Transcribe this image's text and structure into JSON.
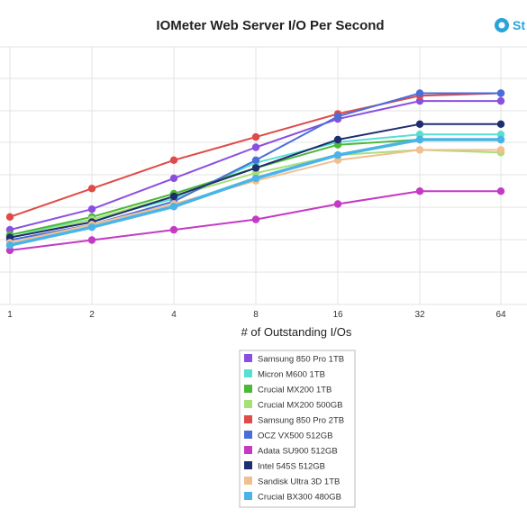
{
  "brand": {
    "logo_text": "St",
    "logo_icon": "brand-logo-icon",
    "accent": "#2aa3d8"
  },
  "chart_data": {
    "type": "line",
    "title": "IOMeter Web Server I/O Per Second",
    "xlabel": "# of Outstanding I/Os",
    "ylabel": "",
    "x_scale": "log2",
    "categories": [
      "1",
      "2",
      "4",
      "8",
      "16",
      "32",
      "64"
    ],
    "ylim": [
      0,
      1
    ],
    "grid": true,
    "legend_position": "bottom-center",
    "series": [
      {
        "name": "Samsung 850 Pro 1TB",
        "color": "#8b4fe0",
        "values": [
          0.29,
          0.37,
          0.49,
          0.61,
          0.72,
          0.79,
          0.79
        ]
      },
      {
        "name": "Micron M600 1TB",
        "color": "#55e0d2",
        "values": [
          0.27,
          0.33,
          0.41,
          0.55,
          0.63,
          0.66,
          0.66
        ]
      },
      {
        "name": "Crucial MX200 1TB",
        "color": "#4cb83a",
        "values": [
          0.27,
          0.34,
          0.43,
          0.53,
          0.62,
          0.64,
          0.64
        ]
      },
      {
        "name": "Crucial MX200 500GB",
        "color": "#a8e078",
        "values": [
          0.26,
          0.33,
          0.42,
          0.51,
          0.58,
          0.6,
          0.59
        ]
      },
      {
        "name": "Samsung 850 Pro 2TB",
        "color": "#e04a48",
        "values": [
          0.34,
          0.45,
          0.56,
          0.65,
          0.74,
          0.81,
          0.82
        ]
      },
      {
        "name": "OCZ VX500 512GB",
        "color": "#4a6ed8",
        "values": [
          0.25,
          0.31,
          0.4,
          0.56,
          0.73,
          0.82,
          0.82
        ]
      },
      {
        "name": "Adata SU900 512GB",
        "color": "#c43ac4",
        "values": [
          0.21,
          0.25,
          0.29,
          0.33,
          0.39,
          0.44,
          0.44
        ]
      },
      {
        "name": "Intel 545S 512GB",
        "color": "#1e2e6e",
        "values": [
          0.26,
          0.32,
          0.42,
          0.53,
          0.64,
          0.7,
          0.7
        ]
      },
      {
        "name": "Sandisk Ultra 3D 1TB",
        "color": "#f0c090",
        "values": [
          0.24,
          0.31,
          0.39,
          0.48,
          0.56,
          0.6,
          0.6
        ]
      },
      {
        "name": "Crucial BX300 480GB",
        "color": "#4ab4e8",
        "values": [
          0.23,
          0.3,
          0.38,
          0.49,
          0.58,
          0.64,
          0.64
        ]
      }
    ]
  }
}
